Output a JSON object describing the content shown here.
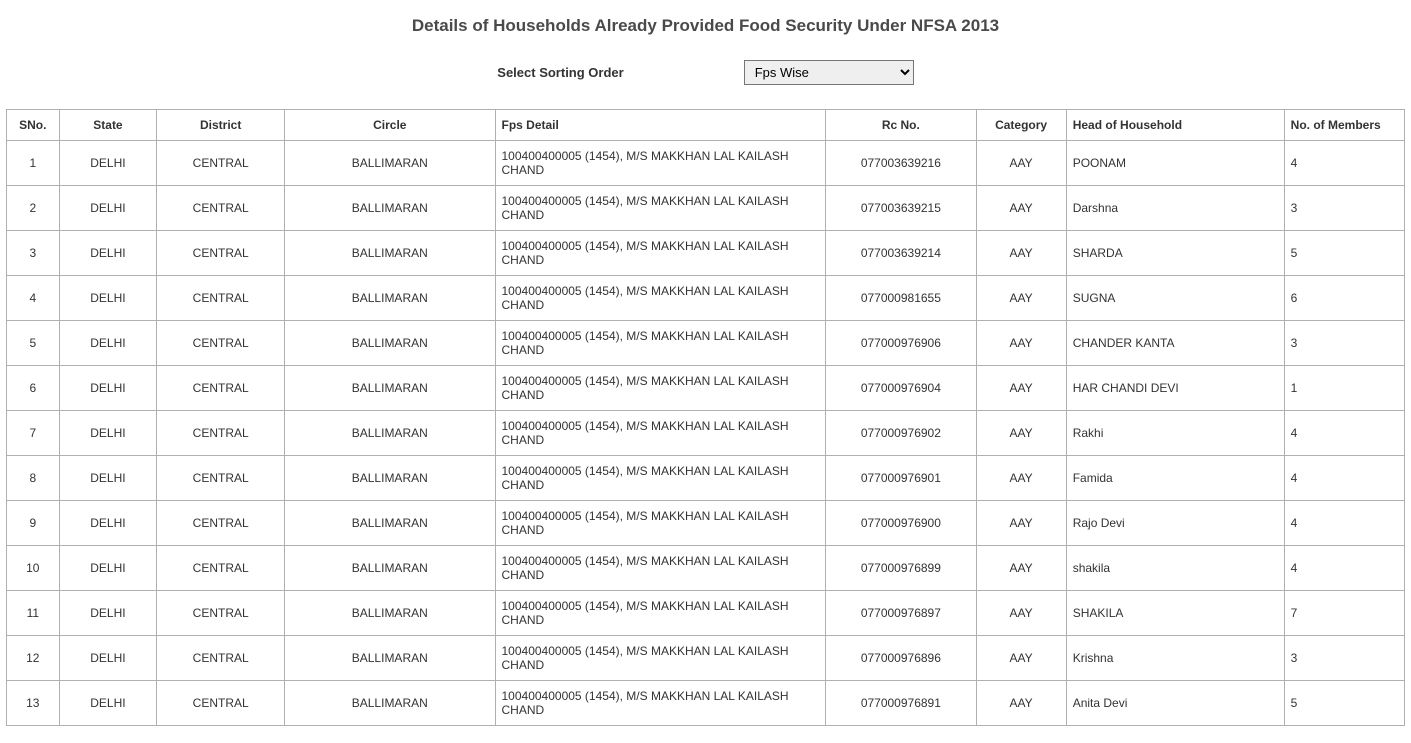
{
  "title": "Details of Households Already Provided Food Security Under NFSA 2013",
  "sort": {
    "label": "Select Sorting Order",
    "selected": "Fps Wise",
    "options": [
      "Fps Wise"
    ]
  },
  "table": {
    "columns": [
      "SNo.",
      "State",
      "District",
      "Circle",
      "Fps Detail",
      "Rc No.",
      "Category",
      "Head of Household",
      "No. of Members"
    ],
    "col_classes": [
      "col-sno",
      "col-state",
      "col-district",
      "col-circle",
      "col-fps",
      "col-rc",
      "col-cat",
      "col-head",
      "col-mem"
    ],
    "rows": [
      [
        "1",
        "DELHI",
        "CENTRAL",
        "BALLIMARAN",
        "100400400005 (1454), M/S MAKKHAN LAL KAILASH CHAND",
        "077003639216",
        "AAY",
        "POONAM",
        "4"
      ],
      [
        "2",
        "DELHI",
        "CENTRAL",
        "BALLIMARAN",
        "100400400005 (1454), M/S MAKKHAN LAL KAILASH CHAND",
        "077003639215",
        "AAY",
        "Darshna",
        "3"
      ],
      [
        "3",
        "DELHI",
        "CENTRAL",
        "BALLIMARAN",
        "100400400005 (1454), M/S MAKKHAN LAL KAILASH CHAND",
        "077003639214",
        "AAY",
        "SHARDA",
        "5"
      ],
      [
        "4",
        "DELHI",
        "CENTRAL",
        "BALLIMARAN",
        "100400400005 (1454), M/S MAKKHAN LAL KAILASH CHAND",
        "077000981655",
        "AAY",
        "SUGNA",
        "6"
      ],
      [
        "5",
        "DELHI",
        "CENTRAL",
        "BALLIMARAN",
        "100400400005 (1454), M/S MAKKHAN LAL KAILASH CHAND",
        "077000976906",
        "AAY",
        "CHANDER KANTA",
        "3"
      ],
      [
        "6",
        "DELHI",
        "CENTRAL",
        "BALLIMARAN",
        "100400400005 (1454), M/S MAKKHAN LAL KAILASH CHAND",
        "077000976904",
        "AAY",
        "HAR CHANDI DEVI",
        "1"
      ],
      [
        "7",
        "DELHI",
        "CENTRAL",
        "BALLIMARAN",
        "100400400005 (1454), M/S MAKKHAN LAL KAILASH CHAND",
        "077000976902",
        "AAY",
        "Rakhi",
        "4"
      ],
      [
        "8",
        "DELHI",
        "CENTRAL",
        "BALLIMARAN",
        "100400400005 (1454), M/S MAKKHAN LAL KAILASH CHAND",
        "077000976901",
        "AAY",
        "Famida",
        "4"
      ],
      [
        "9",
        "DELHI",
        "CENTRAL",
        "BALLIMARAN",
        "100400400005 (1454), M/S MAKKHAN LAL KAILASH CHAND",
        "077000976900",
        "AAY",
        "Rajo Devi",
        "4"
      ],
      [
        "10",
        "DELHI",
        "CENTRAL",
        "BALLIMARAN",
        "100400400005 (1454), M/S MAKKHAN LAL KAILASH CHAND",
        "077000976899",
        "AAY",
        "shakila",
        "4"
      ],
      [
        "11",
        "DELHI",
        "CENTRAL",
        "BALLIMARAN",
        "100400400005 (1454), M/S MAKKHAN LAL KAILASH CHAND",
        "077000976897",
        "AAY",
        "SHAKILA",
        "7"
      ],
      [
        "12",
        "DELHI",
        "CENTRAL",
        "BALLIMARAN",
        "100400400005 (1454), M/S MAKKHAN LAL KAILASH CHAND",
        "077000976896",
        "AAY",
        "Krishna",
        "3"
      ],
      [
        "13",
        "DELHI",
        "CENTRAL",
        "BALLIMARAN",
        "100400400005 (1454), M/S MAKKHAN LAL KAILASH CHAND",
        "077000976891",
        "AAY",
        "Anita Devi",
        "5"
      ]
    ]
  },
  "styling": {
    "background_color": "#ffffff",
    "text_color": "#333333",
    "title_color": "#4a4a4a",
    "border_color": "#b0b0b0",
    "title_fontsize": 17,
    "cell_fontsize": 12,
    "label_fontsize": 13
  }
}
